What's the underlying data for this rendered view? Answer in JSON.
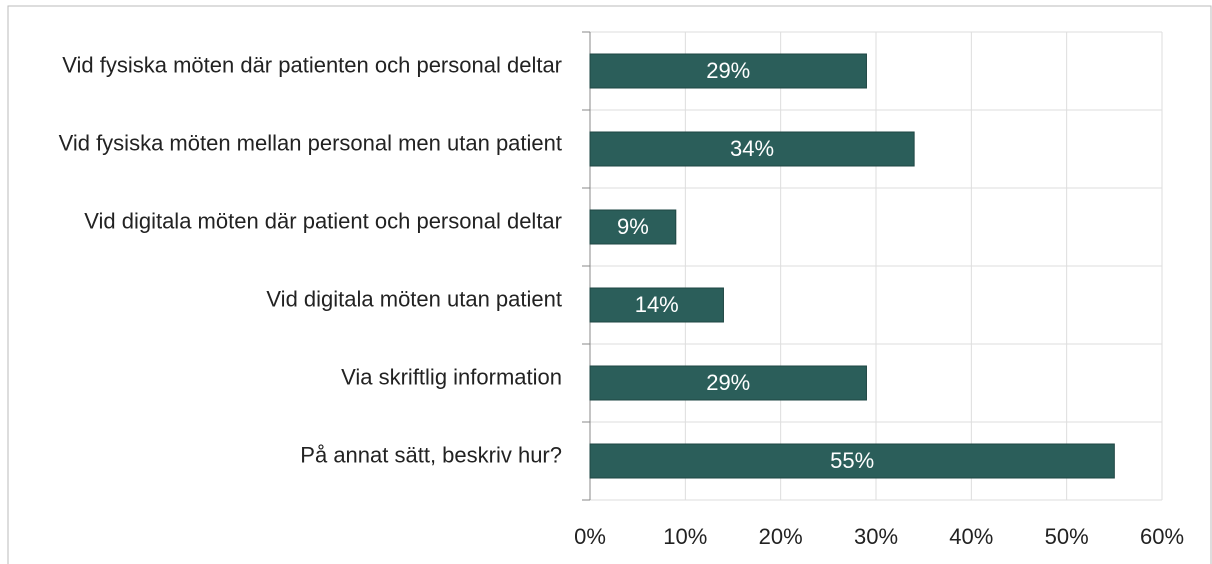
{
  "chart_data": {
    "type": "bar",
    "orientation": "horizontal",
    "categories": [
      "Vid fysiska möten där patienten och personal deltar",
      "Vid fysiska möten mellan personal men utan patient",
      "Vid digitala möten där patient och personal deltar",
      "Vid digitala möten utan patient",
      "Via skriftlig information",
      "På annat sätt, beskriv hur?"
    ],
    "values": [
      29,
      34,
      9,
      14,
      29,
      55
    ],
    "value_labels": [
      "29%",
      "34%",
      "9%",
      "14%",
      "29%",
      "55%"
    ],
    "color": "#2b5e5a",
    "xlim": [
      0,
      60
    ],
    "xticks": [
      {
        "value": 0,
        "label": "0%"
      },
      {
        "value": 10,
        "label": "10%"
      },
      {
        "value": 20,
        "label": "20%"
      },
      {
        "value": 30,
        "label": "30%"
      },
      {
        "value": 40,
        "label": "40%"
      },
      {
        "value": 50,
        "label": "50%"
      },
      {
        "value": 60,
        "label": "60%"
      }
    ],
    "grid": true
  }
}
